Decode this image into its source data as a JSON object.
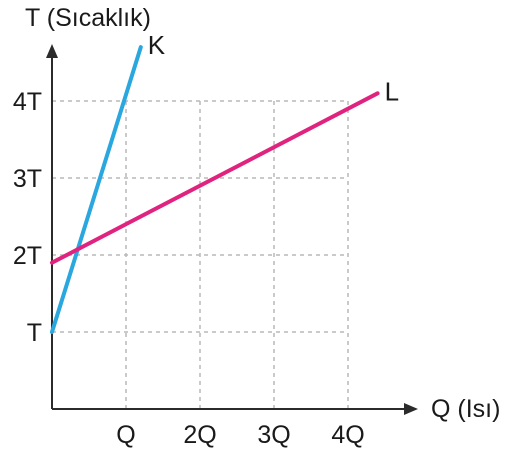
{
  "chart_data": {
    "type": "line",
    "title": "",
    "xlabel": "Q (Isı)",
    "ylabel": "T (Sıcaklık)",
    "xlim": [
      0,
      4.4
    ],
    "ylim": [
      0,
      4.9
    ],
    "x_ticks": [
      {
        "value": 1,
        "label": "Q"
      },
      {
        "value": 2,
        "label": "2Q"
      },
      {
        "value": 3,
        "label": "3Q"
      },
      {
        "value": 4,
        "label": "4Q"
      }
    ],
    "y_ticks": [
      {
        "value": 1,
        "label": "T"
      },
      {
        "value": 2,
        "label": "2T"
      },
      {
        "value": 3,
        "label": "3T"
      },
      {
        "value": 4,
        "label": "4T"
      }
    ],
    "grid": true,
    "series": [
      {
        "name": "K",
        "color": "#2aa7de",
        "x": [
          0,
          1.2
        ],
        "y": [
          1,
          4.7
        ]
      },
      {
        "name": "L",
        "color": "#e0237f",
        "x": [
          0,
          4.4
        ],
        "y": [
          1.9,
          4.1
        ]
      }
    ]
  }
}
